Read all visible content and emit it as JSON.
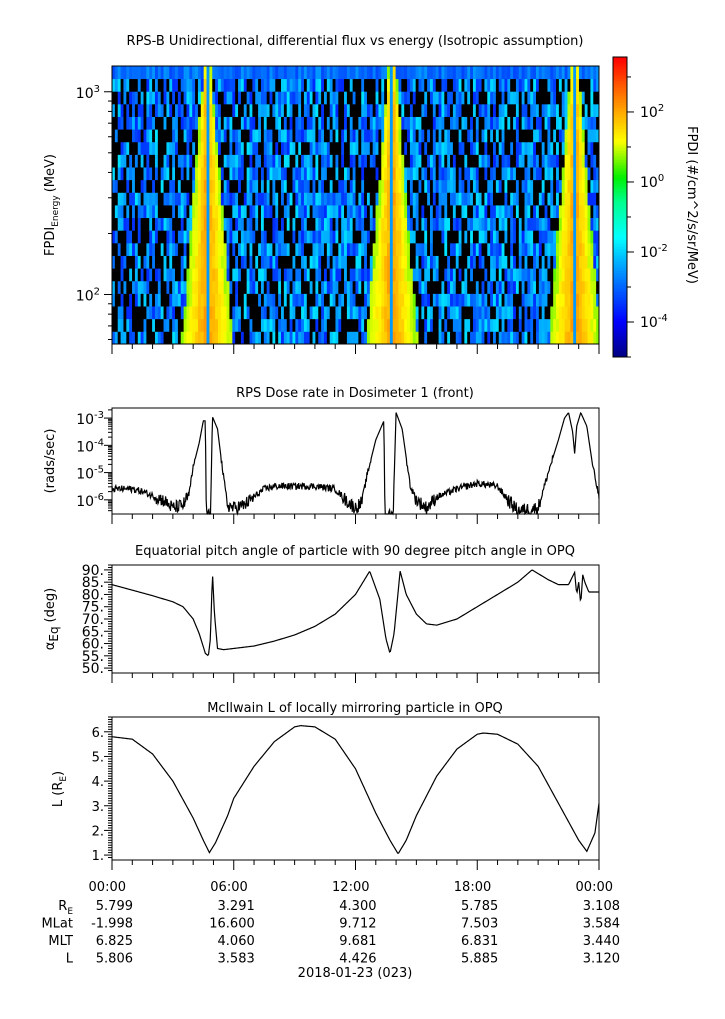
{
  "chart_data": [
    {
      "type": "heatmap",
      "title": "RPS-B  Unidirectional, differential flux vs energy (Isotropic assumption)",
      "ylabel": "FPDI",
      "ylabel_sub": "Energy",
      "ylabel_unit": "(MeV)",
      "yscale": "log",
      "ylim": [
        57,
        1340
      ],
      "yticks": [
        {
          "value": 100,
          "base": "10",
          "exp": "2"
        },
        {
          "value": 1000,
          "base": "10",
          "exp": "3"
        }
      ],
      "xlim_hours": [
        0,
        24
      ],
      "belt_crossing_hours": [
        4.7,
        13.8,
        22.8
      ],
      "colorbar": {
        "label": "FPDI (#/cm^2/s/sr/MeV)",
        "scale": "log",
        "range_log10": [
          -5,
          3.57
        ],
        "ticks": [
          {
            "log10": 2,
            "base": "10",
            "exp": "2"
          },
          {
            "log10": 0,
            "base": "10",
            "exp": "0"
          },
          {
            "log10": -2,
            "base": "10",
            "exp": "-2"
          },
          {
            "log10": -4,
            "base": "10",
            "exp": "-4"
          }
        ]
      }
    },
    {
      "type": "line",
      "title": "RPS  Dose rate in Dosimeter 1 (front)",
      "ylabel": "(rads/sec)",
      "yscale": "log",
      "ylim_log10": [
        -6.52,
        -2.63
      ],
      "yticks": [
        {
          "log10": -3,
          "base": "10",
          "exp": "-3"
        },
        {
          "log10": -4,
          "base": "10",
          "exp": "-4"
        },
        {
          "log10": -5,
          "base": "10",
          "exp": "-5"
        },
        {
          "log10": -6,
          "base": "10",
          "exp": "-6"
        }
      ],
      "points_log10": [
        [
          0,
          -5.6
        ],
        [
          1,
          -5.6
        ],
        [
          1.5,
          -5.7
        ],
        [
          2.5,
          -6.0
        ],
        [
          3,
          -6.3
        ],
        [
          3.5,
          -6.2
        ],
        [
          3.8,
          -5.8
        ],
        [
          4,
          -4.8
        ],
        [
          4.3,
          -3.9
        ],
        [
          4.5,
          -3.1
        ],
        [
          4.6,
          -3.1
        ],
        [
          4.65,
          -6.6
        ],
        [
          4.85,
          -6.6
        ],
        [
          4.95,
          -2.95
        ],
        [
          5.2,
          -3.4
        ],
        [
          5.5,
          -5.2
        ],
        [
          5.7,
          -6.2
        ],
        [
          6,
          -6.3
        ],
        [
          6.5,
          -6.2
        ],
        [
          7,
          -5.9
        ],
        [
          7.5,
          -5.6
        ],
        [
          8,
          -5.5
        ],
        [
          10,
          -5.5
        ],
        [
          11,
          -5.6
        ],
        [
          11.5,
          -6.0
        ],
        [
          12,
          -6.3
        ],
        [
          12.3,
          -6.1
        ],
        [
          12.6,
          -5.0
        ],
        [
          13,
          -3.8
        ],
        [
          13.4,
          -3.1
        ],
        [
          13.45,
          -6.6
        ],
        [
          13.85,
          -6.6
        ],
        [
          14.0,
          -2.8
        ],
        [
          14.3,
          -3.4
        ],
        [
          14.7,
          -5.5
        ],
        [
          15,
          -6.0
        ],
        [
          15.5,
          -6.3
        ],
        [
          16,
          -5.9
        ],
        [
          17,
          -5.6
        ],
        [
          18,
          -5.4
        ],
        [
          19,
          -5.5
        ],
        [
          19.5,
          -6.0
        ],
        [
          20,
          -6.4
        ],
        [
          21,
          -6.3
        ],
        [
          21.5,
          -5.0
        ],
        [
          22,
          -3.8
        ],
        [
          22.3,
          -3.0
        ],
        [
          22.5,
          -2.8
        ],
        [
          22.7,
          -3.5
        ],
        [
          22.8,
          -4.3
        ],
        [
          22.9,
          -3.3
        ],
        [
          23.1,
          -2.8
        ],
        [
          23.4,
          -3.3
        ],
        [
          23.7,
          -4.8
        ],
        [
          24,
          -5.9
        ]
      ]
    },
    {
      "type": "line",
      "title": "Equatorial pitch angle of particle with 90 degree pitch angle in OPQ",
      "ylabel": "α",
      "ylabel_sub": "Eq",
      "ylabel_unit": "(deg)",
      "ylim": [
        48,
        92
      ],
      "yticks": [
        "50.",
        "55.",
        "60.",
        "65.",
        "70.",
        "75.",
        "80.",
        "85.",
        "90."
      ],
      "points": [
        [
          0,
          84
        ],
        [
          2,
          79.5
        ],
        [
          3,
          77
        ],
        [
          3.5,
          75
        ],
        [
          4,
          70
        ],
        [
          4.3,
          64
        ],
        [
          4.6,
          56
        ],
        [
          4.75,
          55
        ],
        [
          4.85,
          62
        ],
        [
          4.95,
          89
        ],
        [
          5.05,
          72
        ],
        [
          5.2,
          58
        ],
        [
          5.5,
          57.5
        ],
        [
          6,
          58
        ],
        [
          7,
          59
        ],
        [
          8,
          61
        ],
        [
          9,
          63.5
        ],
        [
          10,
          67
        ],
        [
          11,
          72
        ],
        [
          12,
          80
        ],
        [
          12.7,
          89.5
        ],
        [
          13.2,
          78
        ],
        [
          13.5,
          62
        ],
        [
          13.7,
          56
        ],
        [
          13.9,
          64
        ],
        [
          14.2,
          89.5
        ],
        [
          14.5,
          80
        ],
        [
          15,
          72
        ],
        [
          15.5,
          68
        ],
        [
          16,
          67.5
        ],
        [
          17,
          70
        ],
        [
          18,
          75
        ],
        [
          19,
          80
        ],
        [
          20,
          85
        ],
        [
          20.7,
          90
        ],
        [
          21.5,
          86
        ],
        [
          22,
          84
        ],
        [
          22.5,
          84
        ],
        [
          22.8,
          89
        ],
        [
          22.9,
          80
        ],
        [
          23,
          85
        ],
        [
          23.1,
          76
        ],
        [
          23.2,
          88
        ],
        [
          23.3,
          85
        ],
        [
          23.5,
          81
        ],
        [
          24,
          81
        ]
      ]
    },
    {
      "type": "line",
      "title": "McIlwain L of locally mirroring particle in OPQ",
      "ylabel": "L (R",
      "ylabel_sub": "E",
      "ylabel_unit": ")",
      "ylim": [
        0.8,
        6.6
      ],
      "yticks": [
        "1.",
        "2.",
        "3.",
        "4.",
        "5.",
        "6."
      ],
      "points": [
        [
          0,
          5.8
        ],
        [
          1,
          5.7
        ],
        [
          2,
          5.1
        ],
        [
          3,
          4.0
        ],
        [
          4,
          2.5
        ],
        [
          4.5,
          1.6
        ],
        [
          4.8,
          1.1
        ],
        [
          5.1,
          1.5
        ],
        [
          5.7,
          2.6
        ],
        [
          6,
          3.3
        ],
        [
          7,
          4.6
        ],
        [
          8,
          5.6
        ],
        [
          9,
          6.2
        ],
        [
          9.3,
          6.25
        ],
        [
          10,
          6.2
        ],
        [
          11,
          5.7
        ],
        [
          12,
          4.5
        ],
        [
          13,
          2.7
        ],
        [
          13.7,
          1.6
        ],
        [
          14.1,
          1.05
        ],
        [
          14.5,
          1.6
        ],
        [
          15,
          2.6
        ],
        [
          16,
          4.2
        ],
        [
          17,
          5.3
        ],
        [
          18,
          5.9
        ],
        [
          18.3,
          5.95
        ],
        [
          19,
          5.9
        ],
        [
          20,
          5.5
        ],
        [
          21,
          4.6
        ],
        [
          22,
          3.1
        ],
        [
          23,
          1.6
        ],
        [
          23.4,
          1.15
        ],
        [
          23.8,
          1.9
        ],
        [
          24,
          3.1
        ]
      ]
    }
  ],
  "x_axis": {
    "tick_labels": [
      "00:00",
      "06:00",
      "12:00",
      "18:00",
      "00:00"
    ],
    "rows": [
      {
        "label": "R",
        "label_sub": "E",
        "values": [
          "5.799",
          "3.291",
          "4.300",
          "5.785",
          "3.108"
        ]
      },
      {
        "label": "MLat",
        "values": [
          "-1.998",
          "16.600",
          "9.712",
          "7.503",
          "3.584"
        ]
      },
      {
        "label": "MLT",
        "values": [
          "6.825",
          "4.060",
          "9.681",
          "6.831",
          "3.440"
        ]
      },
      {
        "label": "L",
        "values": [
          "5.806",
          "3.583",
          "4.426",
          "5.885",
          "3.120"
        ]
      }
    ],
    "date": "2018-01-23 (023)"
  }
}
